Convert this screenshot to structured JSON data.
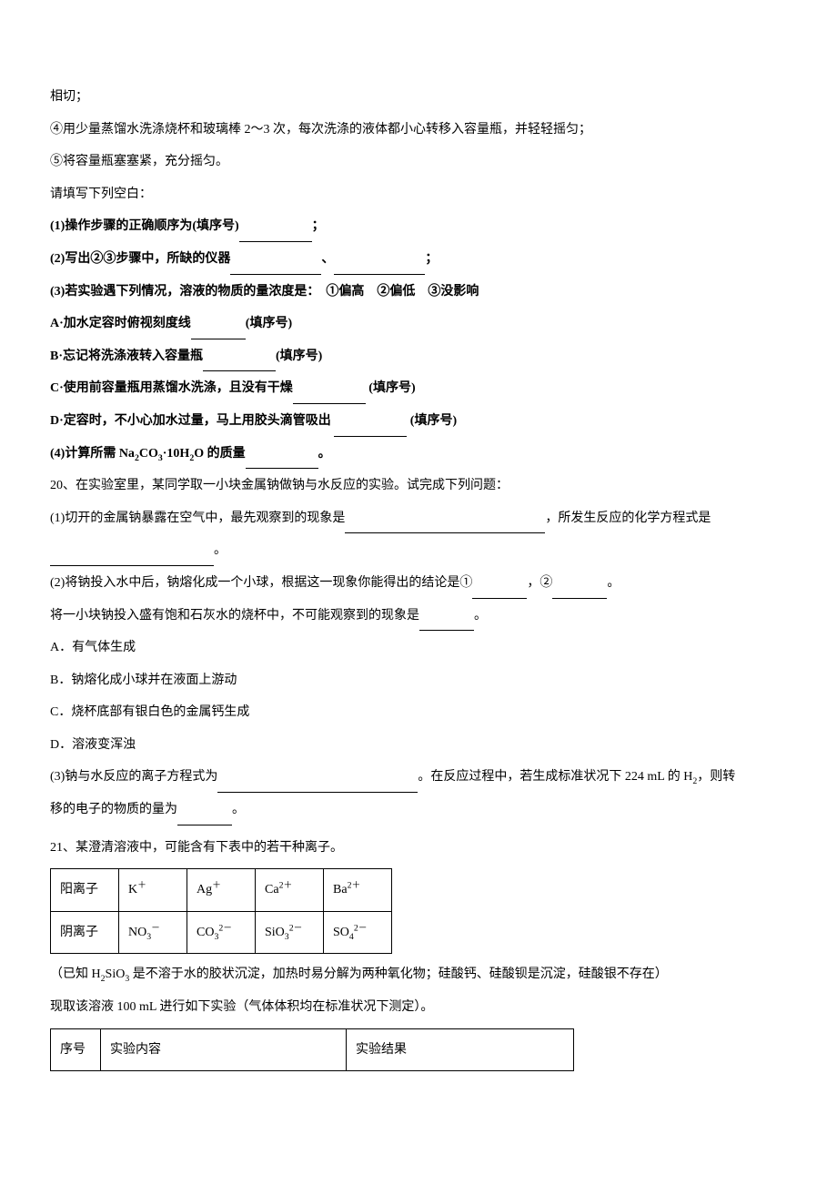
{
  "lines": {
    "l1": "相切；",
    "l2": "④用少量蒸馏水洗涤烧杯和玻璃棒 2～3 次，每次洗涤的液体都小心转移入容量瓶，并轻轻摇匀；",
    "l3": "⑤将容量瓶塞塞紧，充分摇匀。",
    "l4": "请填写下列空白：",
    "q1": "(1)操作步骤的正确顺序为(填序号)",
    "q1_suffix": "；",
    "q2": "(2)写出②③步骤中，所缺的仪器",
    "q2_sep": "、",
    "q2_suffix": "；",
    "q3": "(3)若实验遇下列情况，溶液的物质的量浓度是：　①偏高　②偏低　③没影响",
    "qA": "A·加水定容时俯视刻度线",
    "qA_suffix": "(填序号)",
    "qB": "B·忘记将洗涤液转入容量瓶",
    "qB_suffix": "(填序号)",
    "qC": "C·使用前容量瓶用蒸馏水洗涤，且没有干燥",
    "qC_suffix": "(填序号)",
    "qD": "D·定容时，不小心加水过量，马上用胶头滴管吸出 ",
    "qD_suffix": " (填序号)",
    "q4_prefix": "(4)计算所需 Na",
    "q4_mid": "CO",
    "q4_mid2": "·10H",
    "q4_mid3": "O 的质量",
    "q4_suffix": "。",
    "q20": "20、在实验室里，某同学取一小块金属钠做钠与水反应的实验。试完成下列问题：",
    "q20_1a": "(1)切开的金属钠暴露在空气中，最先观察到的现象是",
    "q20_1b": "，所发生反应的化学方程式是",
    "q20_1c": "。",
    "q20_2a": "(2)将钠投入水中后，钠熔化成一个小球，根据这一现象你能得出的结论是①",
    "q20_2b": "，②",
    "q20_2c": "。",
    "q20_2d": "将一小块钠投入盛有饱和石灰水的烧杯中，不可能观察到的现象是",
    "q20_2e": "。",
    "optA": "A．有气体生成",
    "optB": "B．钠熔化成小球并在液面上游动",
    "optC": "C．烧杯底部有银白色的金属钙生成",
    "optD": "D．溶液变浑浊",
    "q20_3a": "(3)钠与水反应的离子方程式为",
    "q20_3b": "。在反应过程中，若生成标准状况下 224 mL 的 H",
    "q20_3c": "，则转",
    "q20_3d": "移的电子的物质的量为",
    "q20_3e": "。",
    "q21": "21、某澄清溶液中，可能含有下表中的若干种离子。",
    "note_prefix": "（已知 H",
    "note_mid1": "SiO",
    "note_mid2": " 是不溶于水的胶状沉淀，加热时易分解为两种氧化物；硅酸钙、硅酸钡是沉淀，硅酸银不存在）",
    "note2": "现取该溶液 100 mL 进行如下实验（气体体积均在标准状况下测定）。"
  },
  "ion_table": {
    "rows": [
      [
        "阳离子",
        "K<sup>＋</sup>",
        "Ag<sup>＋</sup>",
        "Ca<sup>2＋</sup>",
        "Ba<sup>2＋</sup>"
      ],
      [
        "阴离子",
        "NO<sub>3</sub><sup>－</sup>",
        "CO<sub>3</sub><sup>2－</sup>",
        "SiO<sub>3</sub><sup>2－</sup>",
        "SO<sub>4</sub><sup>2－</sup>"
      ]
    ]
  },
  "exp_table": {
    "header": [
      "序号",
      "实验内容",
      "实验结果"
    ]
  }
}
